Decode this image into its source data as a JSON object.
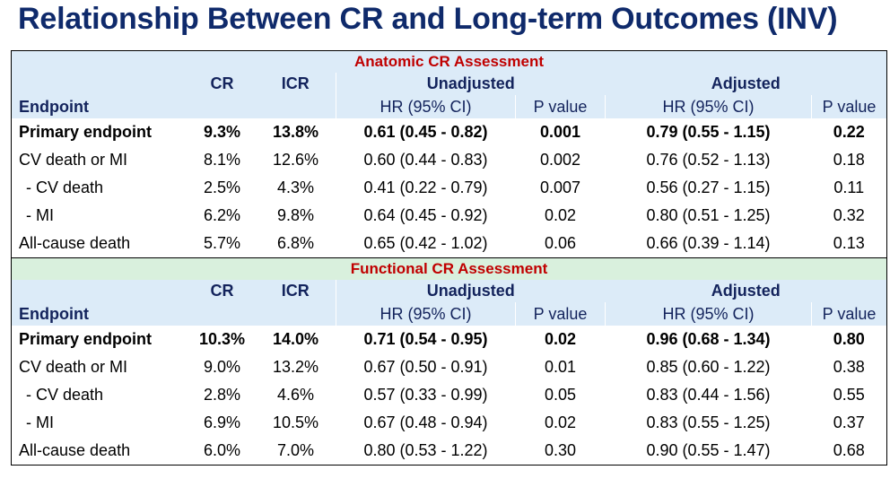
{
  "title": "Relationship Between CR and Long-term Outcomes (INV)",
  "headers": {
    "cr": "CR",
    "icr": "ICR",
    "unadjusted": "Unadjusted",
    "adjusted": "Adjusted",
    "endpoint": "Endpoint",
    "hr": "HR (95% CI)",
    "p": "P value"
  },
  "sections": [
    {
      "title": "Anatomic CR Assessment",
      "rows": [
        {
          "endpoint": "Primary endpoint",
          "cr": "9.3%",
          "icr": "13.8%",
          "hr_unadj": "0.61 (0.45 - 0.82)",
          "p_unadj": "0.001",
          "hr_adj": "0.79 (0.55 - 1.15)",
          "p_adj": "0.22"
        },
        {
          "endpoint": "CV death or MI",
          "cr": "8.1%",
          "icr": "12.6%",
          "hr_unadj": "0.60 (0.44 - 0.83)",
          "p_unadj": "0.002",
          "hr_adj": "0.76 (0.52 - 1.13)",
          "p_adj": "0.18"
        },
        {
          "endpoint": "- CV death",
          "cr": "2.5%",
          "icr": "4.3%",
          "hr_unadj": "0.41 (0.22 - 0.79)",
          "p_unadj": "0.007",
          "hr_adj": "0.56 (0.27 - 1.15)",
          "p_adj": "0.11"
        },
        {
          "endpoint": "- MI",
          "cr": "6.2%",
          "icr": "9.8%",
          "hr_unadj": "0.64 (0.45 - 0.92)",
          "p_unadj": "0.02",
          "hr_adj": "0.80 (0.51 - 1.25)",
          "p_adj": "0.32"
        },
        {
          "endpoint": "All-cause death",
          "cr": "5.7%",
          "icr": "6.8%",
          "hr_unadj": "0.65 (0.42 - 1.02)",
          "p_unadj": "0.06",
          "hr_adj": "0.66 (0.39 - 1.14)",
          "p_adj": "0.13"
        }
      ]
    },
    {
      "title": "Functional CR Assessment",
      "rows": [
        {
          "endpoint": "Primary endpoint",
          "cr": "10.3%",
          "icr": "14.0%",
          "hr_unadj": "0.71 (0.54 - 0.95)",
          "p_unadj": "0.02",
          "hr_adj": "0.96 (0.68 - 1.34)",
          "p_adj": "0.80"
        },
        {
          "endpoint": "CV death or MI",
          "cr": "9.0%",
          "icr": "13.2%",
          "hr_unadj": "0.67 (0.50 - 0.91)",
          "p_unadj": "0.01",
          "hr_adj": "0.85 (0.60 - 1.22)",
          "p_adj": "0.38"
        },
        {
          "endpoint": "- CV death",
          "cr": "2.8%",
          "icr": "4.6%",
          "hr_unadj": "0.57 (0.33 - 0.99)",
          "p_unadj": "0.05",
          "hr_adj": "0.83 (0.44 - 1.56)",
          "p_adj": "0.55"
        },
        {
          "endpoint": "- MI",
          "cr": "6.9%",
          "icr": "10.5%",
          "hr_unadj": "0.67 (0.48 - 0.94)",
          "p_unadj": "0.02",
          "hr_adj": "0.83 (0.55 - 1.25)",
          "p_adj": "0.37"
        },
        {
          "endpoint": "All-cause death",
          "cr": "6.0%",
          "icr": "7.0%",
          "hr_unadj": "0.80 (0.53 - 1.22)",
          "p_unadj": "0.30",
          "hr_adj": "0.90 (0.55 - 1.47)",
          "p_adj": "0.68"
        }
      ]
    }
  ]
}
